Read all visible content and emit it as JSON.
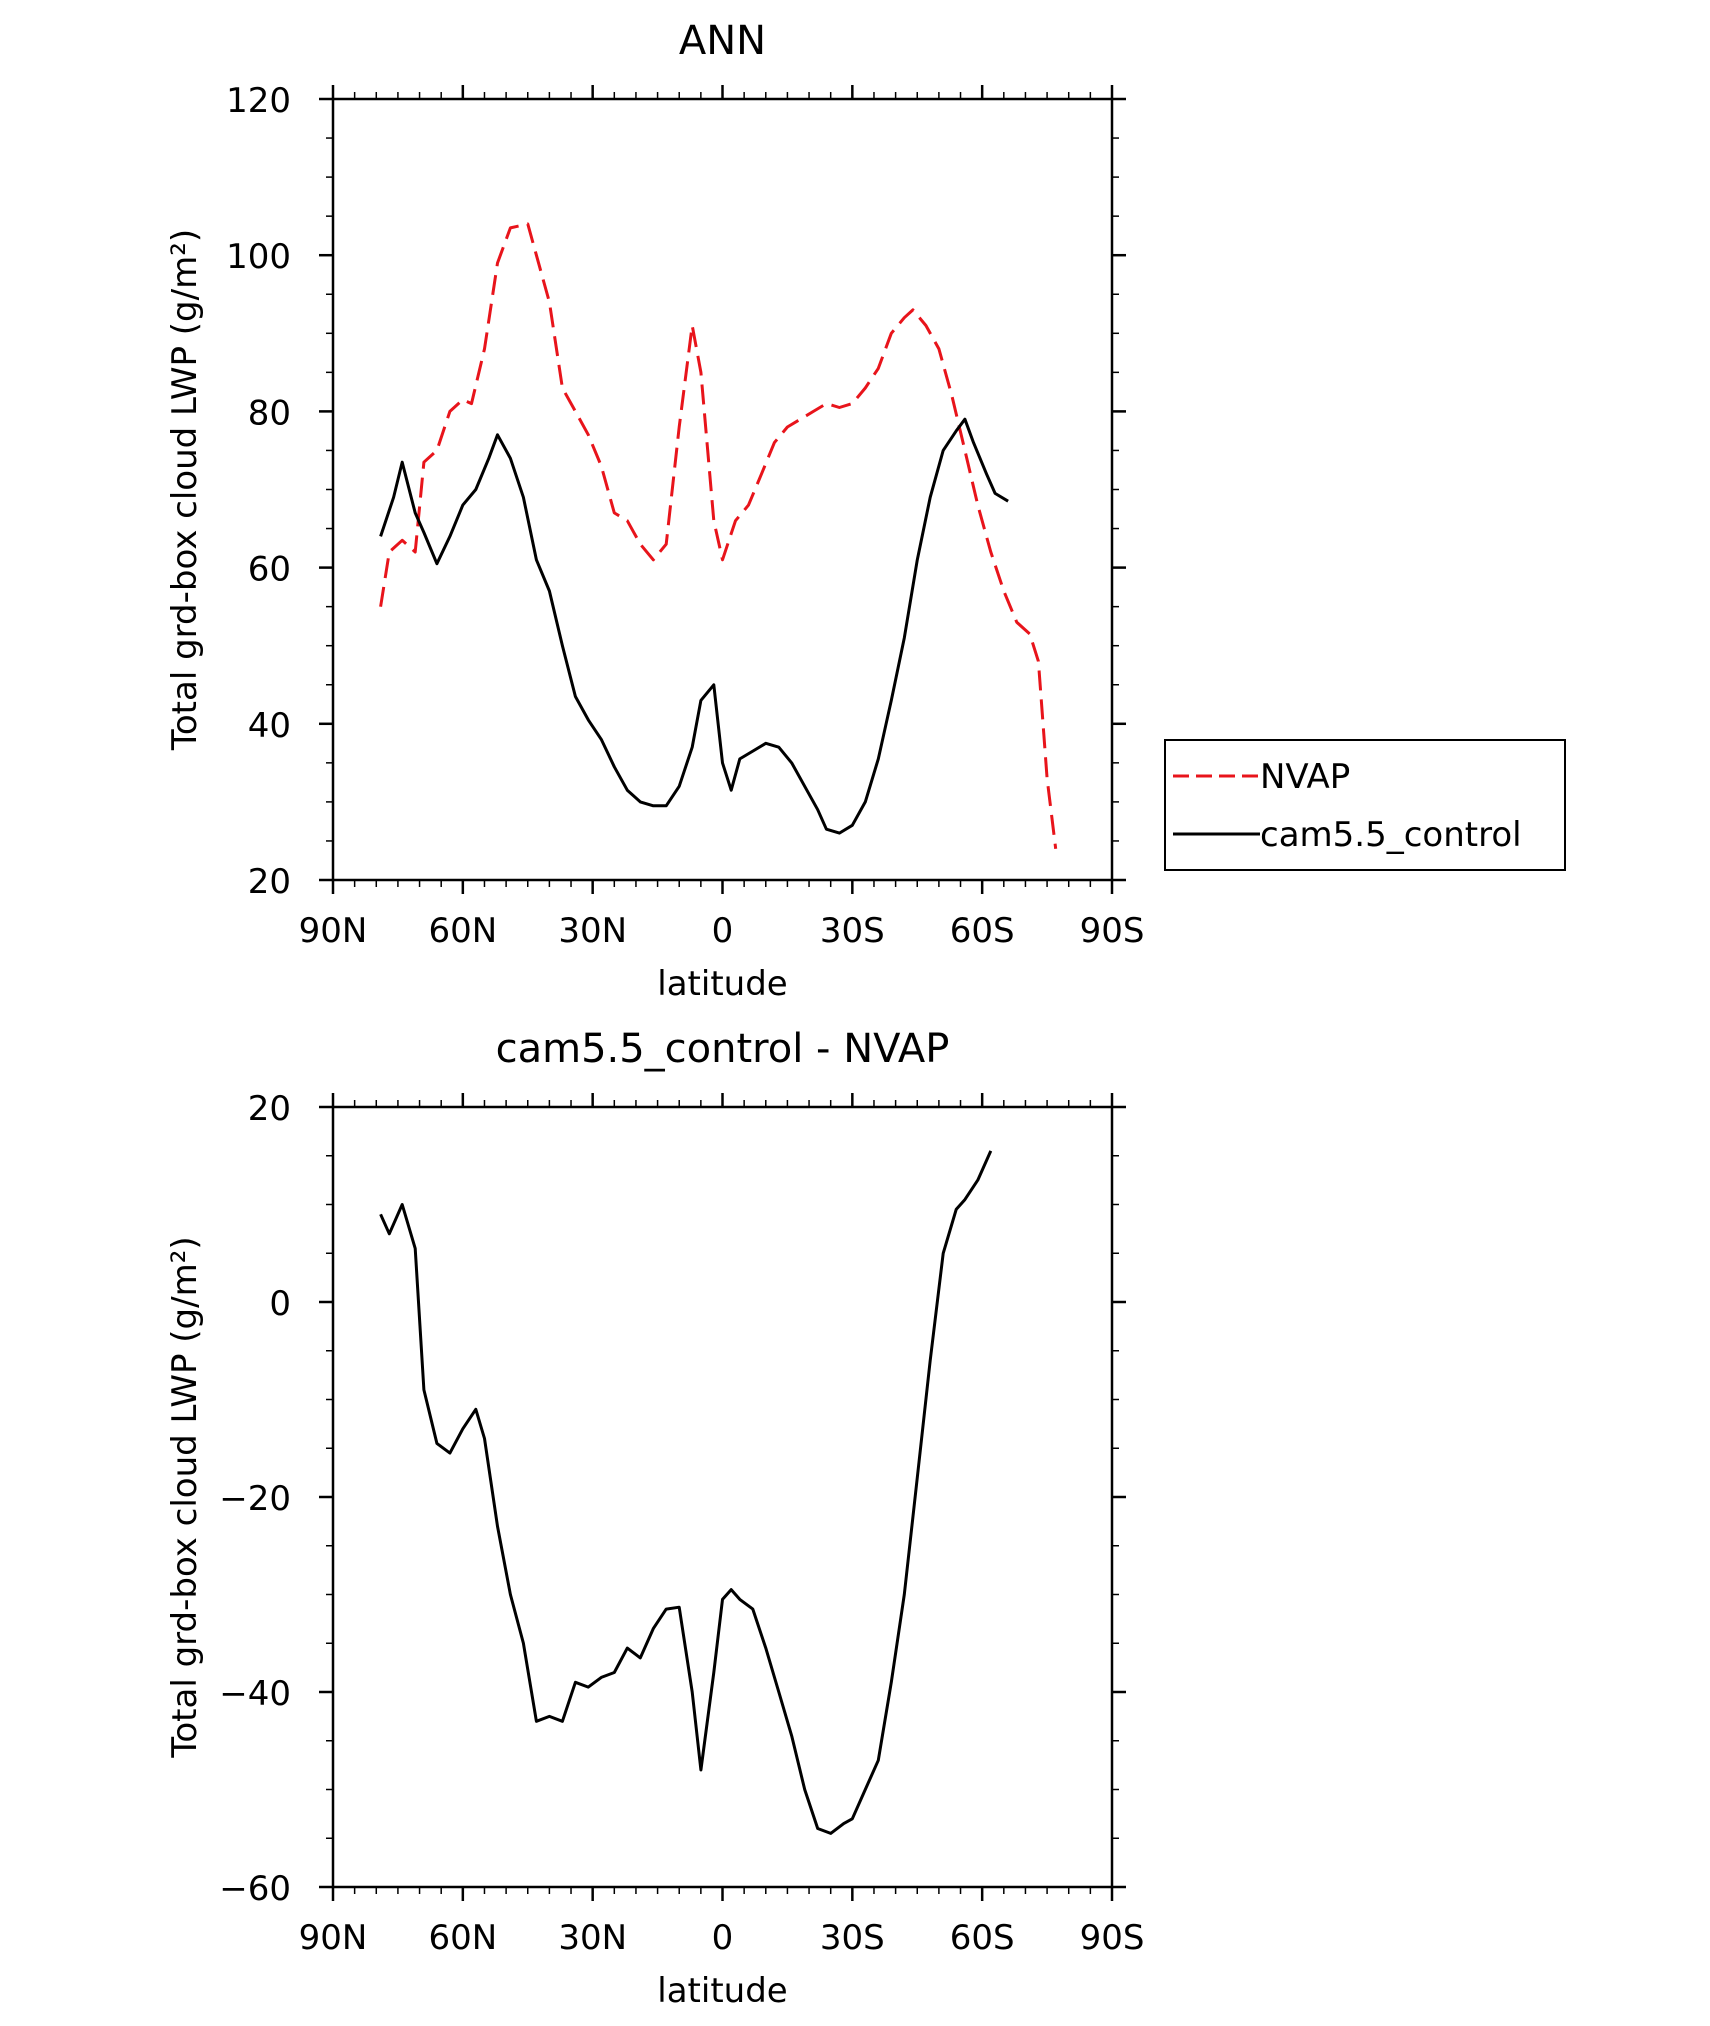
{
  "chart_data": [
    {
      "type": "line",
      "title": "ANN",
      "xlabel": "latitude",
      "ylabel": "Total grd-box cloud LWP (g/m²)",
      "xlim": [
        90,
        -90
      ],
      "ylim": [
        20,
        120
      ],
      "x_ticks": [
        90,
        60,
        30,
        0,
        -30,
        -60,
        -90
      ],
      "x_tick_labels": [
        "90N",
        "60N",
        "30N",
        "0",
        "30S",
        "60S",
        "90S"
      ],
      "y_ticks": [
        20,
        40,
        60,
        80,
        100,
        120
      ],
      "y_tick_labels": [
        "20",
        "40",
        "60",
        "80",
        "100",
        "120"
      ],
      "grid": false,
      "legend": "right",
      "series": [
        {
          "name": "NVAP",
          "color": "#e8141b",
          "dash": true,
          "points": [
            [
              79,
              55
            ],
            [
              77,
              62
            ],
            [
              74,
              63.5
            ],
            [
              71,
              62
            ],
            [
              69,
              73.5
            ],
            [
              66,
              75
            ],
            [
              63,
              80
            ],
            [
              60,
              81.5
            ],
            [
              58,
              81
            ],
            [
              55,
              88
            ],
            [
              52,
              99
            ],
            [
              49,
              103.5
            ],
            [
              45,
              104
            ],
            [
              43,
              100
            ],
            [
              40,
              94
            ],
            [
              37,
              83
            ],
            [
              34,
              80
            ],
            [
              31,
              77
            ],
            [
              28,
              73
            ],
            [
              25,
              67
            ],
            [
              22,
              66
            ],
            [
              19,
              63
            ],
            [
              16,
              61
            ],
            [
              13,
              63
            ],
            [
              10,
              78
            ],
            [
              7,
              91
            ],
            [
              5,
              85
            ],
            [
              2,
              66
            ],
            [
              0,
              61
            ],
            [
              -3,
              66
            ],
            [
              -6,
              68
            ],
            [
              -9,
              72
            ],
            [
              -12,
              76
            ],
            [
              -15,
              78
            ],
            [
              -18,
              79
            ],
            [
              -21,
              80
            ],
            [
              -24,
              81
            ],
            [
              -27,
              80.5
            ],
            [
              -30,
              81
            ],
            [
              -33,
              83
            ],
            [
              -36,
              85.5
            ],
            [
              -39,
              90
            ],
            [
              -42,
              92
            ],
            [
              -44,
              93
            ],
            [
              -47,
              91
            ],
            [
              -50,
              88
            ],
            [
              -53,
              82
            ],
            [
              -56,
              75
            ],
            [
              -59,
              68
            ],
            [
              -62,
              62
            ],
            [
              -65,
              57
            ],
            [
              -68,
              53
            ],
            [
              -71,
              51.5
            ],
            [
              -73,
              48
            ],
            [
              -75,
              33
            ],
            [
              -77,
              24
            ]
          ]
        },
        {
          "name": "cam5.5_control",
          "color": "#000000",
          "dash": false,
          "points": [
            [
              79,
              64
            ],
            [
              76,
              69
            ],
            [
              74,
              73.5
            ],
            [
              71,
              67
            ],
            [
              69,
              64.5
            ],
            [
              66,
              60.5
            ],
            [
              63,
              64
            ],
            [
              60,
              68
            ],
            [
              57,
              70
            ],
            [
              54,
              74
            ],
            [
              52,
              77
            ],
            [
              49,
              74
            ],
            [
              46,
              69
            ],
            [
              43,
              61
            ],
            [
              40,
              57
            ],
            [
              37,
              50
            ],
            [
              34,
              43.5
            ],
            [
              31,
              40.5
            ],
            [
              28,
              38
            ],
            [
              25,
              34.5
            ],
            [
              22,
              31.5
            ],
            [
              19,
              30
            ],
            [
              16,
              29.5
            ],
            [
              13,
              29.5
            ],
            [
              10,
              32
            ],
            [
              7,
              37
            ],
            [
              5,
              43
            ],
            [
              2,
              45
            ],
            [
              0,
              35
            ],
            [
              -2,
              31.5
            ],
            [
              -4,
              35.5
            ],
            [
              -7,
              36.5
            ],
            [
              -10,
              37.5
            ],
            [
              -13,
              37
            ],
            [
              -16,
              35
            ],
            [
              -19,
              32
            ],
            [
              -22,
              29
            ],
            [
              -24,
              26.5
            ],
            [
              -27,
              26
            ],
            [
              -30,
              27
            ],
            [
              -33,
              30
            ],
            [
              -36,
              35.5
            ],
            [
              -39,
              43
            ],
            [
              -42,
              51
            ],
            [
              -45,
              61
            ],
            [
              -48,
              69
            ],
            [
              -51,
              75
            ],
            [
              -54,
              77.5
            ],
            [
              -56,
              79
            ],
            [
              -58,
              76
            ],
            [
              -61,
              72
            ],
            [
              -63,
              69.5
            ],
            [
              -66,
              68.5
            ]
          ]
        }
      ]
    },
    {
      "type": "line",
      "title": "cam5.5_control - NVAP",
      "xlabel": "latitude",
      "ylabel": "Total grd-box cloud LWP (g/m²)",
      "xlim": [
        90,
        -90
      ],
      "ylim": [
        -60,
        20
      ],
      "x_ticks": [
        90,
        60,
        30,
        0,
        -30,
        -60,
        -90
      ],
      "x_tick_labels": [
        "90N",
        "60N",
        "30N",
        "0",
        "30S",
        "60S",
        "90S"
      ],
      "y_ticks": [
        -60,
        -40,
        -20,
        0,
        20
      ],
      "y_tick_labels": [
        "−60",
        "−40",
        "−20",
        "0",
        "20"
      ],
      "grid": false,
      "series": [
        {
          "color": "#000000",
          "dash": false,
          "points": [
            [
              79,
              9
            ],
            [
              77,
              7
            ],
            [
              74,
              10
            ],
            [
              71,
              5.5
            ],
            [
              69,
              -9
            ],
            [
              66,
              -14.5
            ],
            [
              63,
              -15.5
            ],
            [
              60,
              -13
            ],
            [
              57,
              -11
            ],
            [
              55,
              -14
            ],
            [
              52,
              -23
            ],
            [
              49,
              -30
            ],
            [
              46,
              -35
            ],
            [
              43,
              -43
            ],
            [
              40,
              -42.5
            ],
            [
              37,
              -43
            ],
            [
              34,
              -39
            ],
            [
              31,
              -39.5
            ],
            [
              28,
              -38.5
            ],
            [
              25,
              -38
            ],
            [
              22,
              -35.5
            ],
            [
              19,
              -36.5
            ],
            [
              16,
              -33.5
            ],
            [
              13,
              -31.5
            ],
            [
              10,
              -31.3
            ],
            [
              7,
              -40
            ],
            [
              5,
              -48
            ],
            [
              2,
              -38
            ],
            [
              0,
              -30.5
            ],
            [
              -2,
              -29.5
            ],
            [
              -4,
              -30.5
            ],
            [
              -7,
              -31.5
            ],
            [
              -10,
              -35.5
            ],
            [
              -13,
              -40
            ],
            [
              -16,
              -44.5
            ],
            [
              -19,
              -50
            ],
            [
              -22,
              -54
            ],
            [
              -25,
              -54.5
            ],
            [
              -28,
              -53.5
            ],
            [
              -30,
              -53
            ],
            [
              -33,
              -50
            ],
            [
              -36,
              -47
            ],
            [
              -39,
              -39
            ],
            [
              -42,
              -30
            ],
            [
              -45,
              -18
            ],
            [
              -48,
              -6
            ],
            [
              -51,
              5
            ],
            [
              -54,
              9.5
            ],
            [
              -56,
              10.5
            ],
            [
              -59,
              12.5
            ],
            [
              -62,
              15.5
            ]
          ]
        }
      ]
    }
  ]
}
